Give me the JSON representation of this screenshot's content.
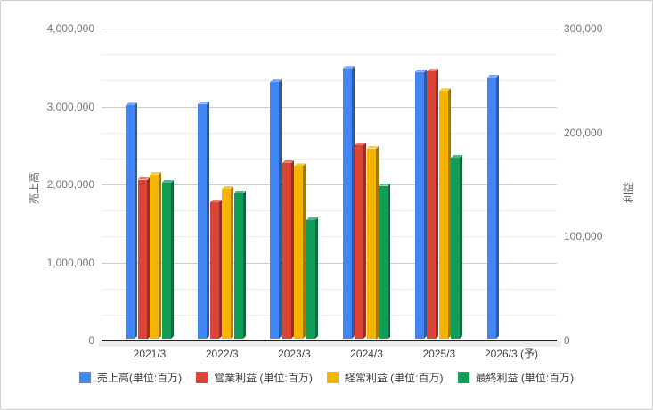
{
  "chart_data": {
    "type": "bar",
    "style": "3d-column",
    "title": "",
    "categories": [
      "2021/3",
      "2022/3",
      "2023/3",
      "2024/3",
      "2025/3",
      "2026/3 (予)"
    ],
    "series": [
      {
        "name": "売上高(単位:百万)",
        "axis": "left",
        "color": "#4285f4",
        "values": [
          2990000,
          3010000,
          3290000,
          3460000,
          3420000,
          3350000
        ]
      },
      {
        "name": "営業利益 (単位:百万)",
        "axis": "right",
        "color": "#db4437",
        "values": [
          153000,
          131000,
          169000,
          186000,
          257000,
          null
        ]
      },
      {
        "name": "経常利益 (単位:百万)",
        "axis": "right",
        "color": "#f4b400",
        "values": [
          158000,
          144000,
          166000,
          183000,
          238000,
          null
        ]
      },
      {
        "name": "最終利益 (単位:百万)",
        "axis": "right",
        "color": "#0f9d58",
        "values": [
          150000,
          140000,
          114000,
          147000,
          174000,
          null
        ]
      }
    ],
    "left_axis": {
      "title": "売上高",
      "range": [
        0,
        4000000
      ],
      "tick_step": 1000000,
      "tick_labels": [
        "0",
        "1,000,000",
        "2,000,000",
        "3,000,000",
        "4,000,000"
      ]
    },
    "right_axis": {
      "title": "利益",
      "range": [
        0,
        300000
      ],
      "tick_step": 100000,
      "tick_labels": [
        "0",
        "100,000",
        "200,000",
        "300,000"
      ]
    },
    "grid": true,
    "minor_gridlines_per_interval": 2,
    "legend_position": "bottom"
  }
}
